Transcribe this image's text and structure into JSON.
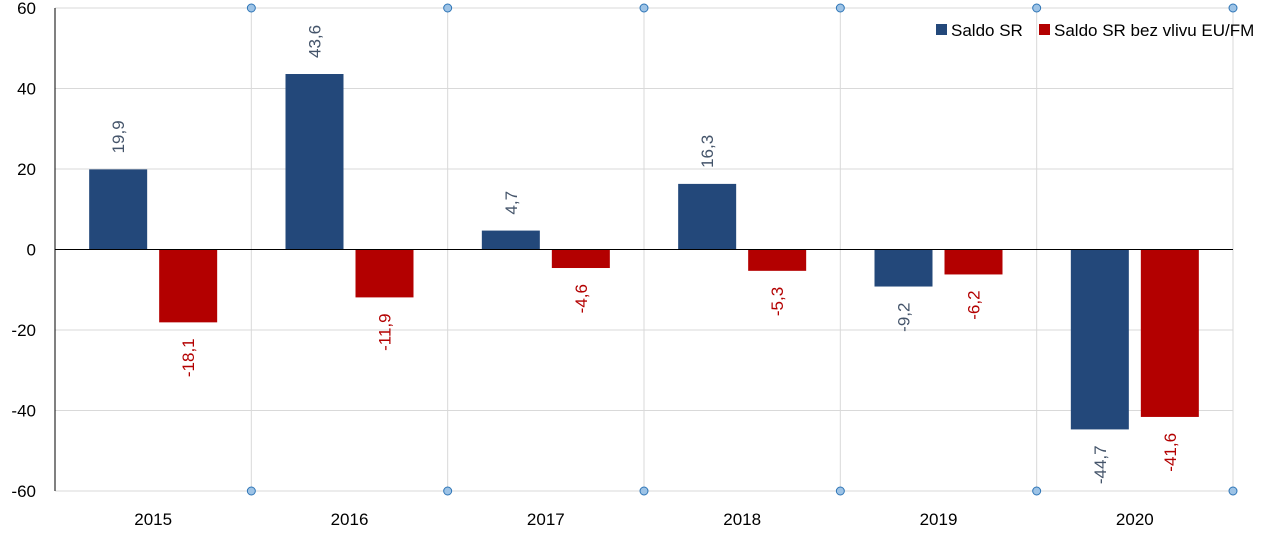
{
  "chart_data": {
    "type": "bar",
    "categories": [
      "2015",
      "2016",
      "2017",
      "2018",
      "2019",
      "2020"
    ],
    "series": [
      {
        "name": "Saldo SR",
        "color": "#23487A",
        "values": [
          19.9,
          43.6,
          4.7,
          16.3,
          -9.2,
          -44.7
        ],
        "labels": [
          "19,9",
          "43,6",
          "4,7",
          "16,3",
          "-9,2",
          "-44,7"
        ]
      },
      {
        "name": "Saldo SR bez vlivu EU/FM",
        "color": "#B30000",
        "values": [
          -18.1,
          -11.9,
          -4.6,
          -5.3,
          -6.2,
          -41.6
        ],
        "labels": [
          "-18,1",
          "-11,9",
          "-4,6",
          "-5,3",
          "-6,2",
          "-41,6"
        ]
      }
    ],
    "ylim": [
      -60,
      60
    ],
    "yticks": [
      -60,
      -40,
      -20,
      0,
      20,
      40,
      60
    ],
    "title": "",
    "xlabel": "",
    "ylabel": "",
    "grid": true,
    "legend": "top-right",
    "colors": {
      "grid": "#D9D9D9",
      "axis": "#000000",
      "marker_fill": "#9DC3E6",
      "marker_stroke": "#2E75B6",
      "series_1_label": "#44546A",
      "series_2_label": "#B30000"
    }
  }
}
